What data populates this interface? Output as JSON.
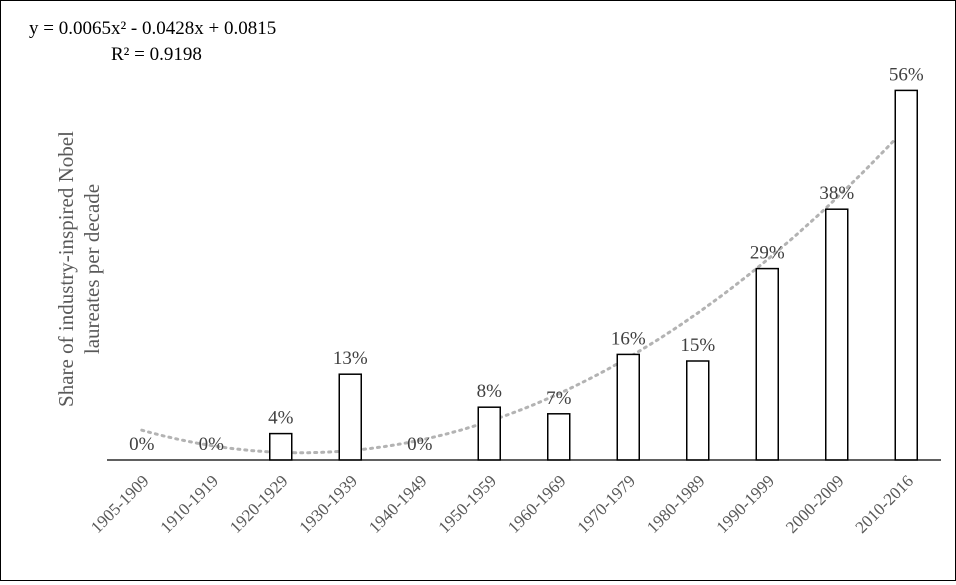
{
  "chart_data": {
    "type": "bar",
    "categories": [
      "1905-1909",
      "1910-1919",
      "1920-1929",
      "1930-1939",
      "1940-1949",
      "1950-1959",
      "1960-1969",
      "1970-1979",
      "1980-1989",
      "1990-1999",
      "2000-2009",
      "2010-2016"
    ],
    "values": [
      0,
      0,
      4,
      13,
      0,
      8,
      7,
      16,
      15,
      29,
      38,
      56
    ],
    "data_labels": [
      "0%",
      "0%",
      "4%",
      "13%",
      "0%",
      "8%",
      "7%",
      "16%",
      "15%",
      "29%",
      "38%",
      "56%"
    ],
    "ylabel": "Share of industry-inspired Nobel laureates per decade",
    "ylabel_lines": [
      "Share of industry-inspired Nobel",
      "laureates per decade"
    ],
    "ylim": [
      0,
      60
    ],
    "grid": false,
    "legend": false,
    "trendline": {
      "type": "polynomial-2",
      "coefficients": [
        0.0065,
        -0.0428,
        0.0815
      ],
      "equation": "y = 0.0065x² - 0.0428x + 0.0815",
      "r_squared": "R² = 0.9198",
      "color": "#b3b3b3"
    },
    "colors": {
      "bar_fill": "#ffffff",
      "bar_stroke": "#000000",
      "axis": "#000000"
    }
  }
}
